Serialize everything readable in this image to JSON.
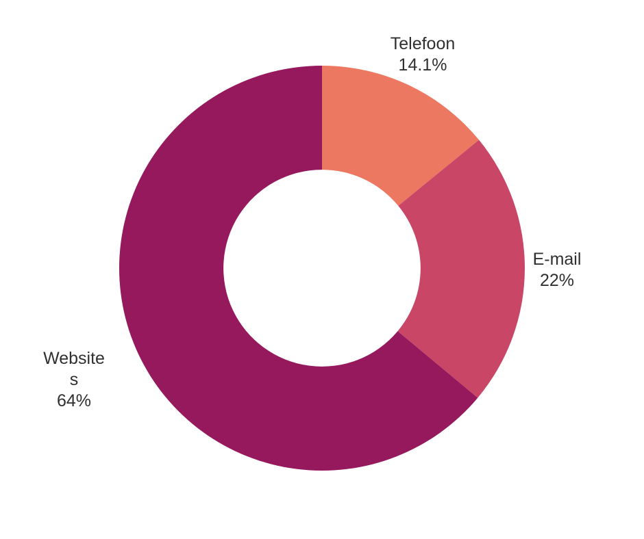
{
  "page": {
    "background": "#FFFFFF"
  },
  "chart_data": {
    "type": "pie",
    "variant": "donut",
    "title": "",
    "legend_position": "none",
    "direction": "clockwise",
    "start_angle_deg": 0,
    "inner_radius_ratio": 0.486,
    "categories": [
      "Telefoon",
      "E-mail",
      "Websites"
    ],
    "values": [
      14.1,
      22,
      64
    ],
    "series": [
      {
        "name": "Telefoon",
        "value": 14.1,
        "display_value": "14.1%",
        "color": "#ED7862"
      },
      {
        "name": "E-mail",
        "value": 22,
        "display_value": "22%",
        "color": "#C94666"
      },
      {
        "name": "Websites",
        "value": 64,
        "display_value": "64%",
        "color": "#96195E"
      }
    ],
    "labels": [
      {
        "lines": [
          "Telefoon",
          "14.1%"
        ]
      },
      {
        "lines": [
          "E-mail",
          "22%"
        ]
      },
      {
        "lines": [
          "Website",
          "s",
          "64%"
        ]
      }
    ],
    "label_color": "#303030"
  }
}
